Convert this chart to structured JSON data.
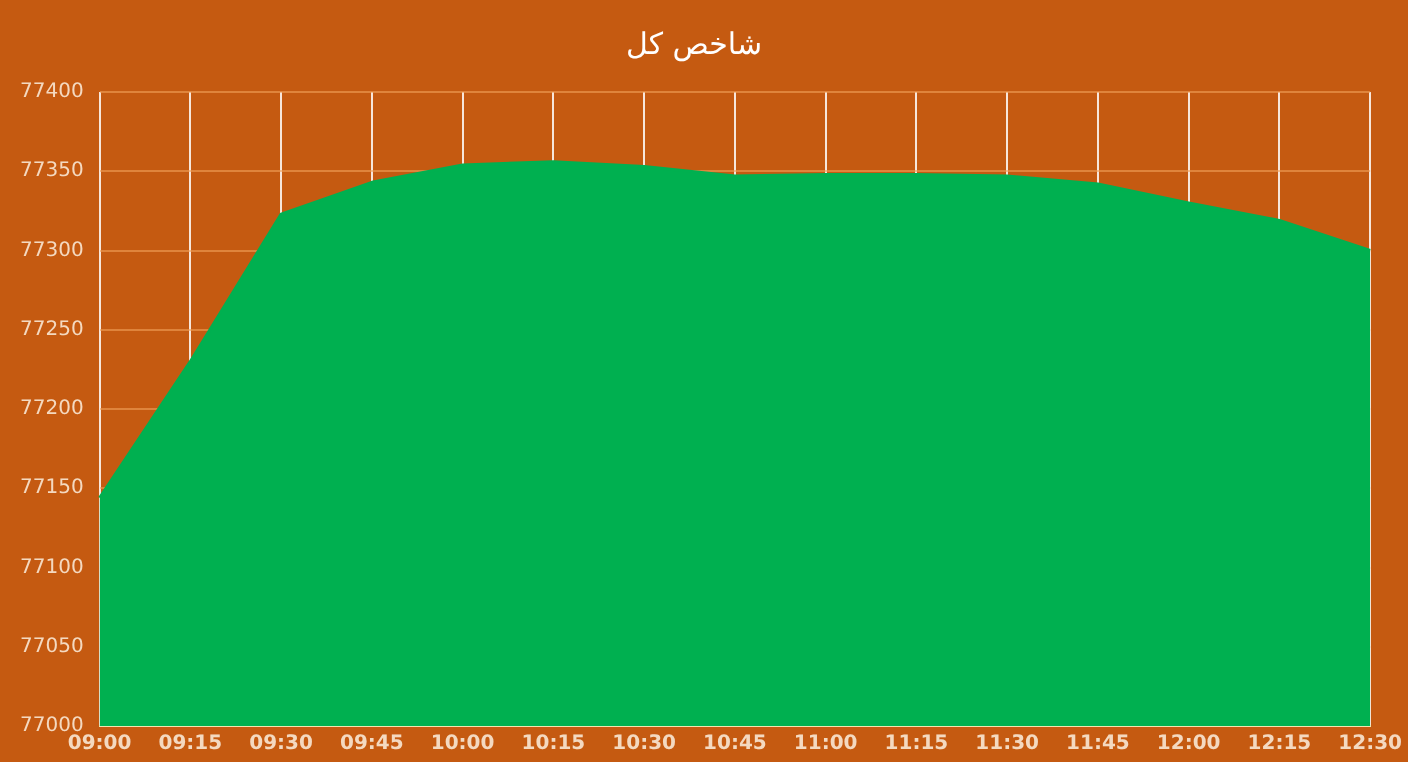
{
  "chart_data": {
    "type": "area",
    "title": "شاخص کل",
    "categories": [
      "09:00",
      "09:15",
      "09:30",
      "09:45",
      "10:00",
      "10:15",
      "10:30",
      "10:45",
      "11:00",
      "11:15",
      "11:30",
      "11:45",
      "12:00",
      "12:15",
      "12:30"
    ],
    "series": [
      {
        "color": "#00b050",
        "values": [
          77144,
          77230,
          77323,
          77343,
          77354,
          77356,
          77353,
          77347,
          77348,
          77348,
          77347,
          77342,
          77330,
          77319,
          77300
        ]
      }
    ],
    "ylim": [
      77000,
      77400
    ],
    "yticks": [
      77000,
      77050,
      77100,
      77150,
      77200,
      77250,
      77300,
      77350,
      77400
    ],
    "grid": true,
    "legend": false,
    "marker": "none",
    "line_style": "solid"
  }
}
